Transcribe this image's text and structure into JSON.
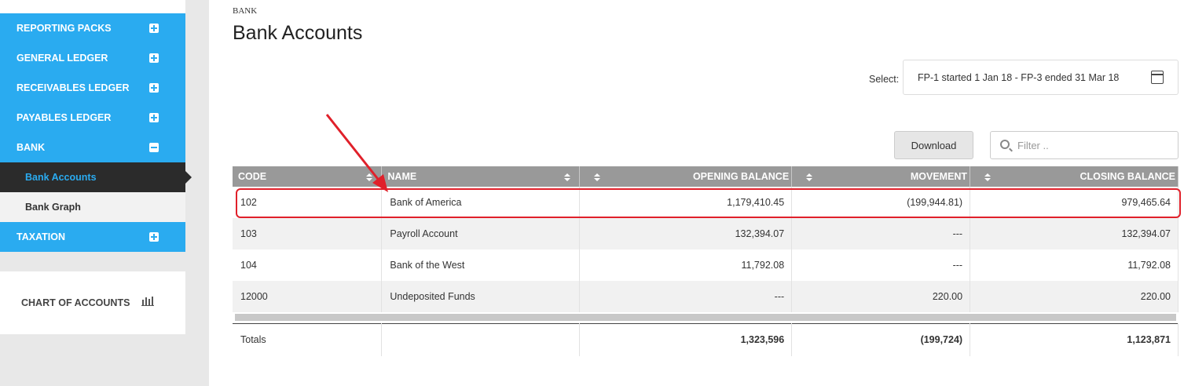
{
  "sidebar": {
    "items": [
      {
        "label": "REPORTING PACKS",
        "expanded": false
      },
      {
        "label": "GENERAL LEDGER",
        "expanded": false
      },
      {
        "label": "RECEIVABLES LEDGER",
        "expanded": false
      },
      {
        "label": "PAYABLES LEDGER",
        "expanded": false
      },
      {
        "label": "BANK",
        "expanded": true
      },
      {
        "label": "TAXATION",
        "expanded": false
      }
    ],
    "bank_sub": [
      "Bank Accounts",
      "Bank Graph"
    ],
    "chart_of_accounts": "CHART OF ACCOUNTS",
    "accent_color": "#2aabf0"
  },
  "header": {
    "breadcrumb": "BANK",
    "title": "Bank Accounts"
  },
  "period": {
    "label": "Select:",
    "value": "FP-1 started 1 Jan 18 - FP-3 ended 31 Mar 18"
  },
  "toolbar": {
    "download_label": "Download",
    "filter_placeholder": "Filter .."
  },
  "table": {
    "headers": [
      "CODE",
      "NAME",
      "OPENING BALANCE",
      "MOVEMENT",
      "CLOSING BALANCE"
    ],
    "rows": [
      {
        "code": "102",
        "name": "Bank of America",
        "opening": "1,179,410.45",
        "movement": "(199,944.81)",
        "closing": "979,465.64"
      },
      {
        "code": "103",
        "name": "Payroll Account",
        "opening": "132,394.07",
        "movement": "---",
        "closing": "132,394.07"
      },
      {
        "code": "104",
        "name": "Bank of the West",
        "opening": "11,792.08",
        "movement": "---",
        "closing": "11,792.08"
      },
      {
        "code": "12000",
        "name": "Undeposited Funds",
        "opening": "---",
        "movement": "220.00",
        "closing": "220.00"
      }
    ],
    "totals": {
      "label": "Totals",
      "opening": "1,323,596",
      "movement": "(199,724)",
      "closing": "1,123,871"
    }
  },
  "annotation_color": "#e0202a"
}
